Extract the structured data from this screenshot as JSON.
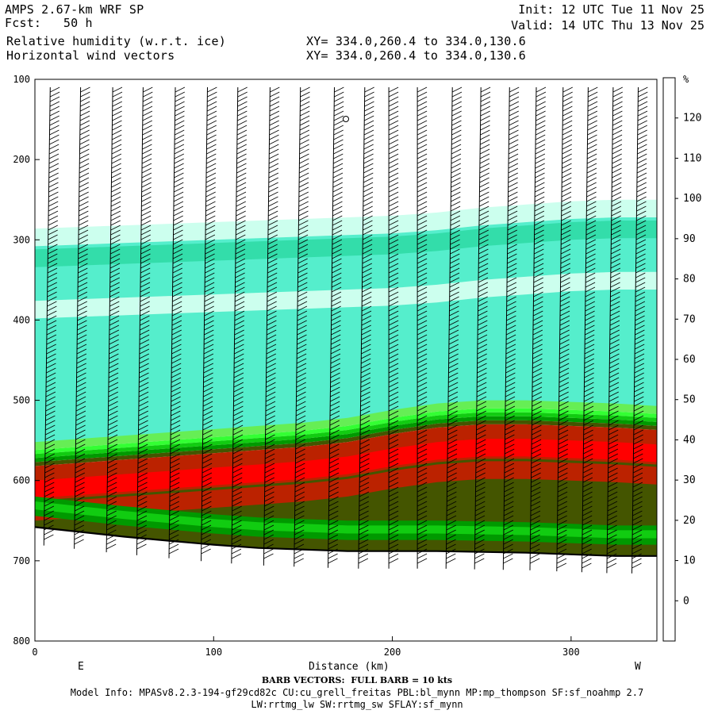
{
  "header": {
    "line1_left": "AMPS 2.67-km WRF SP",
    "line2_left": "Fcst:   50 h",
    "line3_left": "Relative humidity (w.r.t. ice)",
    "line4_left": "Horizontal wind vectors",
    "line3_mid": "XY= 334.0,260.4 to 334.0,130.6",
    "line4_mid": "XY= 334.0,260.4 to 334.0,130.6",
    "line1_right": "Init: 12 UTC Tue 11 Nov 25",
    "line2_right": "Valid: 14 UTC Thu 13 Nov 25"
  },
  "footer": {
    "barb_note": "BARB VECTORS:  FULL BARB = 10 kts",
    "model_info": "Model Info: MPASv8.2.3-194-gf29cd82c CU:cu_grell_freitas PBL:bl_mynn MP:mp_thompson SF:sf_noahmp 2.7",
    "model_info2": "LW:rrtmg_lw SW:rrtmg_sw SFLAY:sf_mynn"
  },
  "chart_data": {
    "type": "heatmap",
    "xlabel": "Distance (km)",
    "x_ticks": [
      0,
      100,
      200,
      300
    ],
    "xlim": [
      0,
      348
    ],
    "y_ticks": [
      100,
      200,
      300,
      400,
      500,
      600,
      700,
      800
    ],
    "ylim": [
      100,
      800
    ],
    "left_end_label": "E",
    "right_end_label": "W",
    "colorbar": {
      "unit": "%",
      "tick_labels": [
        "120",
        "110",
        "100",
        "90",
        "80",
        "70",
        "60",
        "50",
        "40",
        "30",
        "20",
        "10",
        "0"
      ],
      "levels": [
        0,
        10,
        20,
        30,
        40,
        50,
        60,
        70,
        80,
        90,
        100,
        110,
        120
      ],
      "colors": [
        "#ffffff",
        "#ffffff",
        "#ffffff",
        "#ccffee",
        "#55eecc",
        "#33ddaa",
        "#66ee55",
        "#33ff33",
        "#11cc11",
        "#009900",
        "#006600",
        "#445500",
        "#bb2200",
        "#ff0000"
      ]
    },
    "terrain_surface": {
      "x_km": [
        0,
        25,
        50,
        75,
        100,
        125,
        150,
        175,
        200,
        225,
        250,
        275,
        300,
        325,
        348
      ],
      "pressure": [
        658,
        664,
        670,
        675,
        680,
        684,
        686,
        688,
        688,
        688,
        689,
        690,
        692,
        694,
        694
      ]
    },
    "rh_fields": {
      "x_km": [
        0,
        25,
        50,
        75,
        100,
        125,
        150,
        175,
        200,
        225,
        250,
        275,
        300,
        325,
        348
      ],
      "moist_top_pressure": [
        570,
        566,
        562,
        558,
        554,
        550,
        546,
        540,
        530,
        522,
        518,
        518,
        520,
        522,
        525
      ],
      "upper_moist_top_pressure": [
        298,
        296,
        294,
        292,
        290,
        288,
        286,
        284,
        282,
        278,
        272,
        268,
        264,
        262,
        262
      ]
    },
    "barb_columns_km": [
      5,
      22,
      40,
      57,
      75,
      93,
      110,
      128,
      145,
      164,
      181,
      198,
      214,
      230,
      246,
      262,
      277,
      292,
      306,
      320,
      334
    ]
  }
}
